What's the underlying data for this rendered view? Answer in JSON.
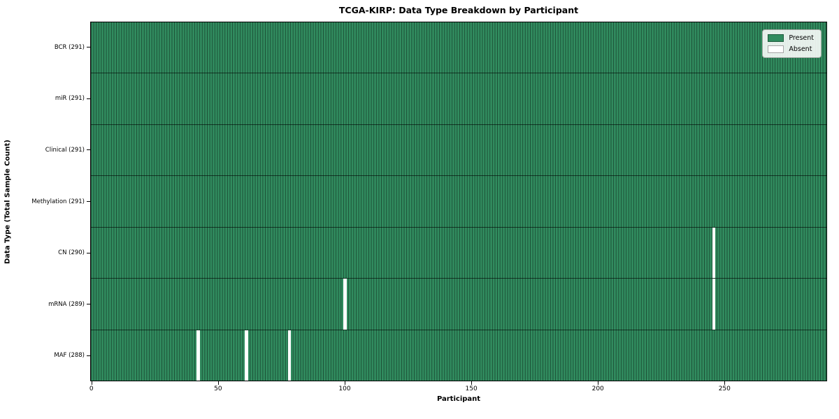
{
  "chart_data": {
    "type": "heatmap",
    "title": "TCGA-KIRP: Data Type Breakdown by Participant",
    "xlabel": "Participant",
    "ylabel": "Data Type (Total Sample Count)",
    "n_participants": 291,
    "x_ticks": [
      0,
      50,
      100,
      150,
      200,
      250
    ],
    "rows": [
      {
        "label": "BCR (291)",
        "name": "bcr",
        "total": 291,
        "absent_participants": []
      },
      {
        "label": "miR (291)",
        "name": "mir",
        "total": 291,
        "absent_participants": []
      },
      {
        "label": "Clinical (291)",
        "name": "clinical",
        "total": 291,
        "absent_participants": []
      },
      {
        "label": "Methylation (291)",
        "name": "methylation",
        "total": 291,
        "absent_participants": []
      },
      {
        "label": "CN (290)",
        "name": "cn",
        "total": 290,
        "absent_participants": [
          246
        ]
      },
      {
        "label": "mRNA (289)",
        "name": "mrna",
        "total": 289,
        "absent_participants": [
          100,
          246
        ]
      },
      {
        "label": "MAF (288)",
        "name": "maf",
        "total": 288,
        "absent_participants": [
          42,
          61,
          78
        ]
      }
    ],
    "legend": [
      {
        "label": "Present",
        "color": "#318c5f"
      },
      {
        "label": "Absent",
        "color": "#ffffff"
      }
    ],
    "legend_position": "upper right",
    "grid": false,
    "colors": {
      "present": "#318c5f",
      "absent": "#ffffff",
      "cell_edge": "rgba(0,0,0,0.45)",
      "row_divider": "rgba(0,0,0,0.6)",
      "frame": "#000000",
      "legend_bg": "rgba(255,255,255,0.88)",
      "legend_border": "#a3a8a3"
    }
  }
}
